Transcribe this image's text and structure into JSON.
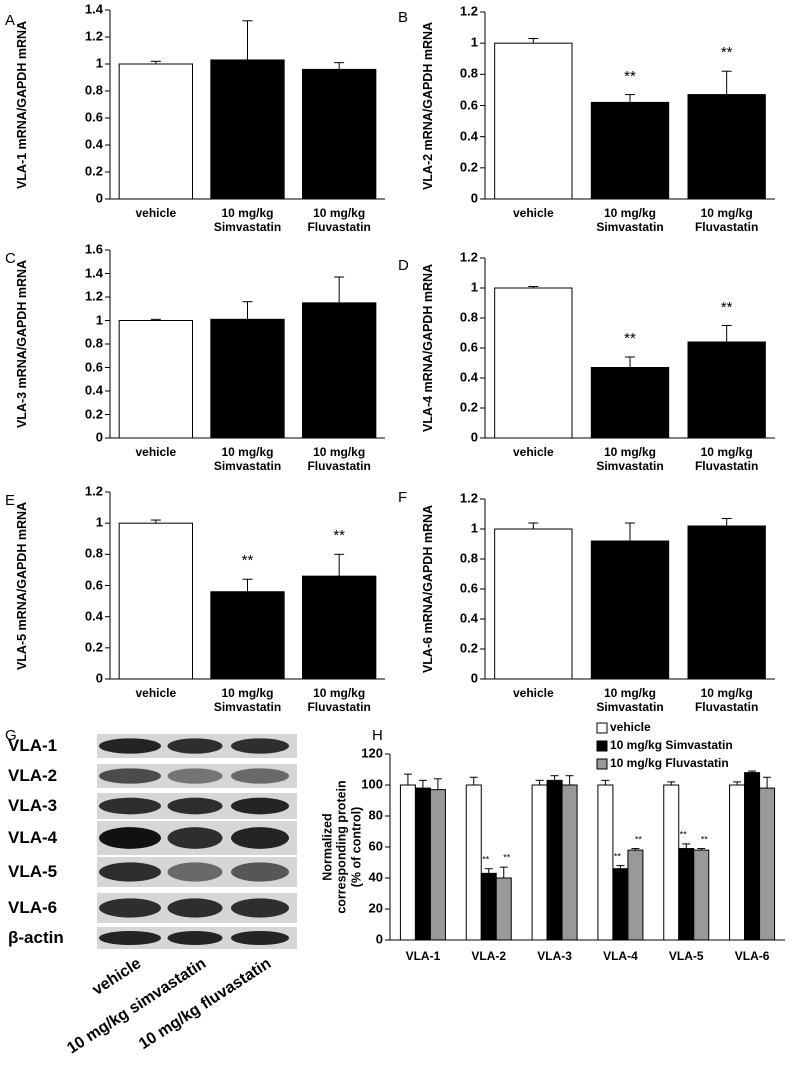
{
  "chart_data": [
    {
      "type": "bar",
      "panel_label": "A",
      "ylabel": "VLA-1 mRNA/GAPDH mRNA",
      "categories": [
        "vehicle",
        "10 mg/kg\nSimvastatin",
        "10 mg/kg\nFluvastatin"
      ],
      "values": [
        1.0,
        1.03,
        0.96
      ],
      "errors": [
        0.02,
        0.29,
        0.05
      ],
      "colors": [
        "#ffffff",
        "#000000",
        "#000000"
      ],
      "significance": [
        null,
        null,
        null
      ],
      "ylim": [
        0,
        1.4
      ],
      "yticks": [
        0,
        0.2,
        0.4,
        0.6,
        0.8,
        {
          "value": 1,
          "label": "1"
        },
        1.2,
        1.4
      ]
    },
    {
      "type": "bar",
      "panel_label": "B",
      "ylabel": "VLA-2 mRNA/GAPDH mRNA",
      "categories": [
        "vehicle",
        "10 mg/kg\nSimvastatin",
        "10 mg/kg\nFluvastatin"
      ],
      "values": [
        1.0,
        0.62,
        0.67
      ],
      "errors": [
        0.03,
        0.05,
        0.15
      ],
      "colors": [
        "#ffffff",
        "#000000",
        "#000000"
      ],
      "significance": [
        null,
        "**",
        "**"
      ],
      "ylim": [
        0,
        1.2
      ],
      "yticks": [
        0,
        0.2,
        0.4,
        0.6,
        0.8,
        1,
        1.2
      ]
    },
    {
      "type": "bar",
      "panel_label": "C",
      "ylabel": "VLA-3 mRNA/GAPDH mRNA",
      "categories": [
        "vehicle",
        "10 mg/kg\nSimvastatin",
        "10 mg/kg\nFluvastatin"
      ],
      "values": [
        1.0,
        1.01,
        1.15
      ],
      "errors": [
        0.01,
        0.15,
        0.22
      ],
      "colors": [
        "#ffffff",
        "#000000",
        "#000000"
      ],
      "significance": [
        null,
        null,
        null
      ],
      "ylim": [
        0,
        1.6
      ],
      "yticks": [
        0,
        0.2,
        0.4,
        0.6,
        0.8,
        1,
        1.2,
        1.4,
        1.6
      ]
    },
    {
      "type": "bar",
      "panel_label": "D",
      "ylabel": "VLA-4 mRNA/GAPDH mRNA",
      "categories": [
        "vehicle",
        "10 mg/kg\nSimvastatin",
        "10 mg/kg\nFluvastatin"
      ],
      "values": [
        1.0,
        0.47,
        0.64
      ],
      "errors": [
        0.01,
        0.07,
        0.11
      ],
      "colors": [
        "#ffffff",
        "#000000",
        "#000000"
      ],
      "significance": [
        null,
        "**",
        "**"
      ],
      "ylim": [
        0,
        1.2
      ],
      "yticks": [
        0,
        0.2,
        0.4,
        0.6,
        0.8,
        1,
        1.2
      ]
    },
    {
      "type": "bar",
      "panel_label": "E",
      "ylabel": "VLA-5 mRNA/GAPDH mRNA",
      "categories": [
        "vehicle",
        "10 mg/kg\nSimvastatin",
        "10 mg/kg\nFluvastatin"
      ],
      "values": [
        1.0,
        0.56,
        0.66
      ],
      "errors": [
        0.02,
        0.08,
        0.14
      ],
      "colors": [
        "#ffffff",
        "#000000",
        "#000000"
      ],
      "significance": [
        null,
        "**",
        "**"
      ],
      "ylim": [
        0,
        1.2
      ],
      "yticks": [
        0,
        0.2,
        0.4,
        0.6,
        0.8,
        1,
        1.2
      ]
    },
    {
      "type": "bar",
      "panel_label": "F",
      "ylabel": "VLA-6 mRNA/GAPDH mRNA",
      "categories": [
        "vehicle",
        "10 mg/kg\nSimvastatin",
        "10 mg/kg\nFluvastatin"
      ],
      "values": [
        1.0,
        0.92,
        1.02
      ],
      "errors": [
        0.04,
        0.12,
        0.05
      ],
      "colors": [
        "#ffffff",
        "#000000",
        "#000000"
      ],
      "significance": [
        null,
        null,
        null
      ],
      "ylim": [
        0,
        1.2
      ],
      "yticks": [
        0,
        0.2,
        0.4,
        0.6,
        0.8,
        1,
        1.2
      ]
    },
    {
      "type": "bar",
      "panel_label": "H",
      "ylabel": "Normalized\ncorresponding protein\n(% of control)",
      "categories": [
        "VLA-1",
        "VLA-2",
        "VLA-3",
        "VLA-4",
        "VLA-5",
        "VLA-6"
      ],
      "series": [
        {
          "name": "vehicle",
          "color": "#ffffff",
          "values": [
            100,
            100,
            100,
            100,
            100,
            100
          ],
          "errors": [
            7,
            5,
            3,
            3,
            2,
            2
          ],
          "significance": [
            null,
            null,
            null,
            null,
            null,
            null
          ]
        },
        {
          "name": "10 mg/kg Simvastatin",
          "color": "#000000",
          "values": [
            98,
            43,
            103,
            46,
            59,
            108
          ],
          "errors": [
            5,
            3,
            3,
            2,
            3,
            1
          ],
          "significance": [
            null,
            "**",
            null,
            "**",
            "**",
            null
          ]
        },
        {
          "name": "10 mg/kg Fluvastatin",
          "color": "#999999",
          "values": [
            97,
            40,
            100,
            58,
            58,
            98
          ],
          "errors": [
            7,
            7,
            6,
            1,
            1,
            7
          ],
          "significance": [
            null,
            "**",
            null,
            "**",
            "**",
            null
          ]
        }
      ],
      "legend": "top-right",
      "ylim": [
        0,
        120
      ],
      "yticks": [
        0,
        20,
        40,
        60,
        80,
        100,
        120
      ]
    }
  ],
  "blot": {
    "panel_label": "G",
    "rows": [
      "VLA-1",
      "VLA-2",
      "VLA-3",
      "VLA-4",
      "VLA-5",
      "VLA-6",
      "β-actin"
    ],
    "lanes": [
      "vehicle",
      "10 mg/kg simvastatin",
      "10 mg/kg fluvastatin"
    ]
  }
}
